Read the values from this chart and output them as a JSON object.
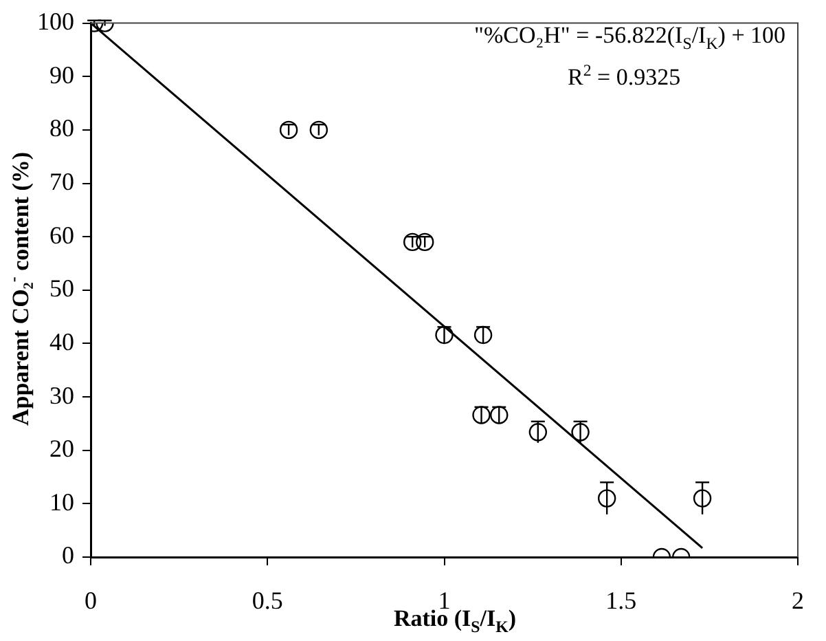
{
  "chart_data": {
    "type": "scatter",
    "xlabel": "Ratio (I$_{S}$/I$_{K}$)",
    "ylabel": "Apparent CO₂$^{-}$ content (%)",
    "xlim": [
      0,
      2
    ],
    "xticks": [
      0,
      0.5,
      1,
      1.5,
      2
    ],
    "ylim": [
      0,
      100
    ],
    "yticks": [
      0,
      10,
      20,
      30,
      40,
      50,
      60,
      70,
      80,
      90,
      100
    ],
    "grid": false,
    "legend": false,
    "marker": "circle",
    "annotations": [
      "\"%CO₂H\" = -56.822(I$_{S}$/I$_{K}$) + 100",
      "R$^{2}$ = 0.9325"
    ],
    "series": [
      {
        "type": "scatter",
        "color": "#000000",
        "x": [
          0.01,
          0.04,
          0.56,
          0.645,
          0.91,
          0.945,
          1.0,
          1.11,
          1.105,
          1.155,
          1.265,
          1.385,
          1.46,
          1.73,
          1.615,
          1.67
        ],
        "values": [
          100,
          100,
          80,
          80,
          59,
          59,
          41.6,
          41.6,
          26.6,
          26.6,
          23.4,
          23.4,
          11,
          11,
          0,
          0
        ],
        "errors": [
          0.5,
          0.5,
          1,
          1,
          1,
          1,
          1.5,
          1.5,
          1.5,
          1.5,
          2,
          2,
          3,
          3,
          null,
          null
        ]
      },
      {
        "type": "line",
        "color": "#000000",
        "marker": "none",
        "x": [
          0,
          1.73
        ],
        "values": [
          100,
          1.7
        ]
      }
    ]
  }
}
